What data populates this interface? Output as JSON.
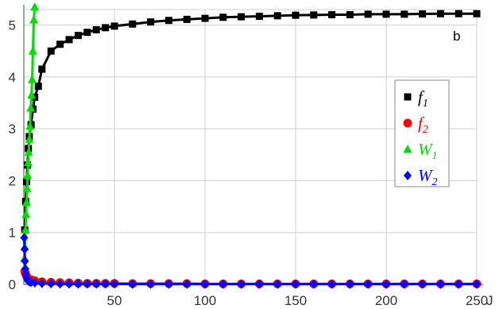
{
  "chart_data": {
    "type": "line",
    "panel_label": "b",
    "xlabel": "J",
    "ylabel": "",
    "xlim": [
      0,
      250
    ],
    "ylim": [
      0,
      5.3
    ],
    "x_ticks": [
      50,
      100,
      150,
      200,
      250
    ],
    "y_ticks": [
      0,
      1,
      2,
      3,
      4,
      5
    ],
    "grid": true,
    "legend_position": "right",
    "series": [
      {
        "name": "f",
        "sub": "1",
        "color": "#000000",
        "marker": "square",
        "x": [
          0.5,
          1,
          1.5,
          2,
          2.5,
          3,
          4,
          5,
          6,
          8,
          10,
          15,
          20,
          25,
          30,
          35,
          40,
          45,
          50,
          60,
          70,
          80,
          90,
          100,
          110,
          120,
          130,
          140,
          150,
          160,
          170,
          180,
          190,
          200,
          210,
          220,
          230,
          240,
          250
        ],
        "y": [
          1.05,
          1.6,
          1.98,
          2.3,
          2.62,
          2.85,
          3.08,
          3.38,
          3.61,
          3.82,
          4.15,
          4.5,
          4.63,
          4.72,
          4.8,
          4.86,
          4.91,
          4.95,
          4.98,
          5.02,
          5.06,
          5.09,
          5.11,
          5.13,
          5.15,
          5.16,
          5.17,
          5.18,
          5.19,
          5.195,
          5.2,
          5.2,
          5.21,
          5.21,
          5.21,
          5.215,
          5.22,
          5.22,
          5.22
        ]
      },
      {
        "name": "f",
        "sub": "2",
        "color": "#ff0000",
        "marker": "circle",
        "x": [
          0.5,
          1,
          1.5,
          2,
          4,
          6,
          10,
          15,
          20,
          25,
          30,
          35,
          40,
          45,
          50,
          60,
          70,
          80,
          90,
          100,
          110,
          120,
          130,
          140,
          150,
          160,
          170,
          180,
          190,
          200,
          210,
          220,
          230,
          240,
          250
        ],
        "y": [
          0.25,
          0.2,
          0.16,
          0.13,
          0.09,
          0.07,
          0.05,
          0.04,
          0.035,
          0.03,
          0.025,
          0.02,
          0.02,
          0.02,
          0.02,
          0.015,
          0.015,
          0.015,
          0.015,
          0.01,
          0.01,
          0.01,
          0.01,
          0.01,
          0.01,
          0.01,
          0.01,
          0.01,
          0.01,
          0.01,
          0.01,
          0.01,
          0.01,
          0.01,
          0.01
        ]
      },
      {
        "name": "W",
        "sub": "1",
        "color": "#00dd00",
        "marker": "triangle",
        "x": [
          0.3,
          0.6,
          0.9,
          1.2,
          1.5,
          1.8,
          2.1,
          2.4,
          2.7,
          3,
          3.4,
          3.8,
          4.2,
          4.6,
          5,
          5.5,
          6
        ],
        "y": [
          0.5,
          0.72,
          1.05,
          1.35,
          1.58,
          1.85,
          2.1,
          2.35,
          2.55,
          2.8,
          3.05,
          3.4,
          3.65,
          3.95,
          4.5,
          5.1,
          5.35
        ]
      },
      {
        "name": "W",
        "sub": "2",
        "color": "#0000ff",
        "marker": "diamond",
        "x": [
          0.2,
          0.4,
          0.6,
          0.8,
          1,
          1.5,
          2,
          3,
          4,
          6,
          10,
          15,
          20,
          25,
          30,
          35,
          40,
          45,
          50,
          60,
          70,
          80,
          90,
          100,
          110,
          120,
          130,
          140,
          150,
          160,
          170,
          180,
          190,
          200,
          210,
          220,
          230,
          240,
          250
        ],
        "y": [
          0.9,
          0.68,
          0.45,
          0.3,
          0.2,
          0.12,
          0.08,
          0.05,
          0.04,
          0.03,
          0.02,
          0.015,
          0.01,
          0.01,
          0.01,
          0.01,
          0.01,
          0.01,
          0.01,
          0.005,
          0.005,
          0.005,
          0.005,
          0.005,
          0.005,
          0.005,
          0.005,
          0.005,
          0.005,
          0.005,
          0.005,
          0.005,
          0.005,
          0.005,
          0.005,
          0.005,
          0.005,
          0.005,
          0.005
        ]
      }
    ]
  }
}
